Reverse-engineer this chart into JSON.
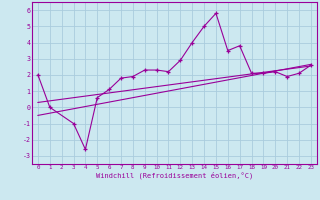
{
  "xlabel": "Windchill (Refroidissement éolien,°C)",
  "x_pts": [
    0,
    1,
    3,
    4,
    5,
    6,
    7,
    8,
    9,
    10,
    11,
    12,
    13,
    14,
    15,
    16,
    17,
    18,
    19,
    20,
    21,
    22,
    23
  ],
  "y_pts": [
    2,
    0,
    -1,
    -2.6,
    0.6,
    1.1,
    1.8,
    1.9,
    2.3,
    2.3,
    2.2,
    2.9,
    4.0,
    5.0,
    5.8,
    3.5,
    3.8,
    2.1,
    2.1,
    2.2,
    1.9,
    2.1,
    2.6
  ],
  "trend1_x": [
    0,
    23
  ],
  "trend1_y": [
    -0.5,
    2.65
  ],
  "trend2_x": [
    0,
    23
  ],
  "trend2_y": [
    0.3,
    2.55
  ],
  "line_color": "#990099",
  "bg_color": "#cce8f0",
  "grid_color": "#aaccdd",
  "ylim": [
    -3.5,
    6.5
  ],
  "yticks": [
    -3,
    -2,
    -1,
    0,
    1,
    2,
    3,
    4,
    5,
    6
  ],
  "xlim": [
    -0.5,
    23.5
  ]
}
